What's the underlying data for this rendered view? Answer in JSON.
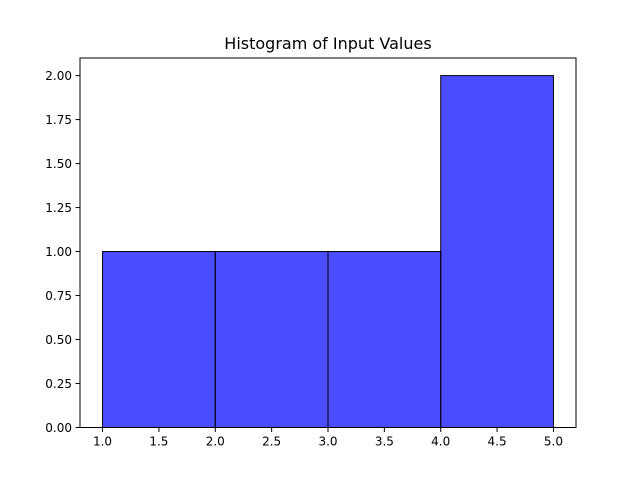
{
  "chart_data": {
    "type": "bar",
    "title": "Histogram of Input Values",
    "xlabel": "",
    "ylabel": "",
    "bins": [
      {
        "start": 1.0,
        "end": 2.0,
        "count": 1
      },
      {
        "start": 2.0,
        "end": 3.0,
        "count": 1
      },
      {
        "start": 3.0,
        "end": 4.0,
        "count": 1
      },
      {
        "start": 4.0,
        "end": 5.0,
        "count": 2
      }
    ],
    "xlim": [
      0.8,
      5.2
    ],
    "ylim": [
      0,
      2.1
    ],
    "xticks": [
      1.0,
      1.5,
      2.0,
      2.5,
      3.0,
      3.5,
      4.0,
      4.5,
      5.0
    ],
    "yticks": [
      0.0,
      0.25,
      0.5,
      0.75,
      1.0,
      1.25,
      1.5,
      1.75,
      2.0
    ],
    "xtick_labels": [
      "1.0",
      "1.5",
      "2.0",
      "2.5",
      "3.0",
      "3.5",
      "4.0",
      "4.5",
      "5.0"
    ],
    "ytick_labels": [
      "0.00",
      "0.25",
      "0.50",
      "0.75",
      "1.00",
      "1.25",
      "1.50",
      "1.75",
      "2.00"
    ],
    "grid": false,
    "colors": {
      "bar_fill": "#0000ff",
      "bar_fill_opacity": "0.7",
      "bar_edge": "#000000",
      "axes": "#000000",
      "background": "#ffffff"
    }
  }
}
